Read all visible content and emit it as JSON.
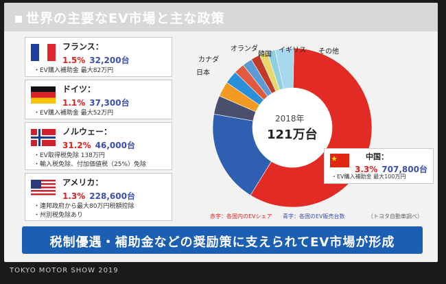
{
  "title": "世界の主要なEV市場と主な政策",
  "countries": {
    "france": {
      "name": "フランス：",
      "pct": "1.5%",
      "units": "32,200台",
      "policies": [
        "・EV購入補助金  最大82万円"
      ]
    },
    "germany": {
      "name": "ドイツ：",
      "pct": "1.1%",
      "units": "37,300台",
      "policies": [
        "・EV購入補助金  最大52万円"
      ]
    },
    "norway": {
      "name": "ノルウェー：",
      "pct": "31.2%",
      "units": "46,000台",
      "policies": [
        "・EV取得税免除 138万円",
        "・輸入税免除、付加価値税（25%）免除"
      ]
    },
    "usa": {
      "name": "アメリカ：",
      "pct": "1.3%",
      "units": "228,600台",
      "policies": [
        "・連邦政府から最大80万円税額控除",
        "・州別税免除あり"
      ]
    },
    "china": {
      "name": "中国：",
      "pct": "3.3%",
      "units": "707,800台",
      "policies": [
        "・EV購入補助金 最大100万円"
      ]
    }
  },
  "pie_labels": {
    "netherlands": "オランダ",
    "korea": "韓国",
    "uk": "イギリス",
    "other": "その他",
    "canada": "カナダ",
    "japan": "日本"
  },
  "center": {
    "year": "2018年",
    "total": "121万台"
  },
  "chart_data": {
    "type": "pie",
    "donut": true,
    "total_label": "121万台",
    "year": "2018年",
    "slices": [
      {
        "label": "中国",
        "value": 707800,
        "color": "#e22b25"
      },
      {
        "label": "アメリカ",
        "value": 228600,
        "color": "#2e5fb0"
      },
      {
        "label": "ノルウェー",
        "value": 46000,
        "color": "#4a4f6e"
      },
      {
        "label": "ドイツ",
        "value": 37300,
        "color": "#f39a22"
      },
      {
        "label": "フランス",
        "value": 32200,
        "color": "#2a8fd8"
      },
      {
        "label": "日本",
        "value": 26000,
        "color": "#e05a40"
      },
      {
        "label": "カナダ",
        "value": 24000,
        "color": "#5b9bd5"
      },
      {
        "label": "オランダ",
        "value": 22000,
        "color": "#c0392b"
      },
      {
        "label": "韓国",
        "value": 20000,
        "color": "#e8d86a"
      },
      {
        "label": "イギリス",
        "value": 20000,
        "color": "#8fd0e0"
      },
      {
        "label": "その他",
        "value": 46000,
        "color": "#a8d8ee"
      }
    ]
  },
  "notes": {
    "red": "赤字：各国内のEVシェア",
    "blue": "青字：各国のEV販売台数",
    "source": "（トヨタ自動車調べ）"
  },
  "banner": "税制優遇・補助金などの奨励策に支えられてEV市場が形成",
  "footer": "TOKYO MOTOR SHOW 2019",
  "colors": {
    "banner": "#1c5fb2",
    "red": "#e02020",
    "blue": "#3a4fb0"
  }
}
